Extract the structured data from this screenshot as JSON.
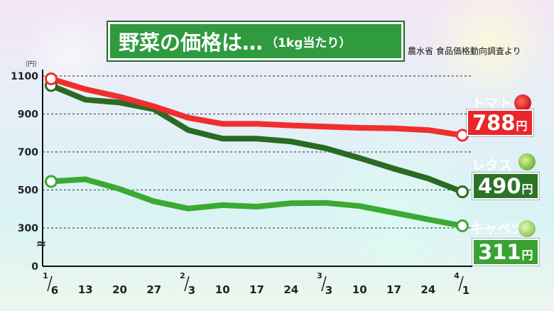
{
  "title": {
    "main": "野菜の価格は…",
    "sub": "（1kg当たり）"
  },
  "source": "農水省 食品価格動向調査より",
  "chart_data": {
    "type": "line",
    "unit": "（円）",
    "ylim": [
      0,
      1100
    ],
    "y_ticks": [
      0,
      300,
      500,
      700,
      900,
      1100
    ],
    "y_break_symbol": "≈",
    "x_ticks": [
      "1/6",
      "13",
      "20",
      "27",
      "2/3",
      "10",
      "17",
      "24",
      "3/3",
      "10",
      "17",
      "24",
      "4/1"
    ],
    "grid": "horizontal dashed",
    "series": [
      {
        "name": "トマト",
        "color": "#f02e2e",
        "values": [
          1085,
          1030,
          990,
          940,
          880,
          848,
          848,
          840,
          833,
          827,
          824,
          815,
          788
        ],
        "label_value": "788",
        "label_unit": "円"
      },
      {
        "name": "レタス",
        "color": "#2a6a22",
        "values": [
          1050,
          975,
          960,
          925,
          815,
          770,
          770,
          755,
          720,
          668,
          612,
          560,
          490
        ],
        "label_value": "490",
        "label_unit": "円"
      },
      {
        "name": "キャベツ",
        "color": "#3aaa32",
        "values": [
          545,
          556,
          505,
          440,
          402,
          420,
          412,
          430,
          432,
          415,
          380,
          345,
          311
        ],
        "label_value": "311",
        "label_unit": "円"
      }
    ]
  },
  "colors": {
    "title_bg": "#2f9a3e",
    "tomato": "#f02e2e",
    "lettuce": "#2a6a22",
    "cabbage": "#3aaa32"
  },
  "icons": {
    "tomato": "tomato-icon",
    "lettuce": "lettuce-icon",
    "cabbage": "cabbage-icon"
  }
}
